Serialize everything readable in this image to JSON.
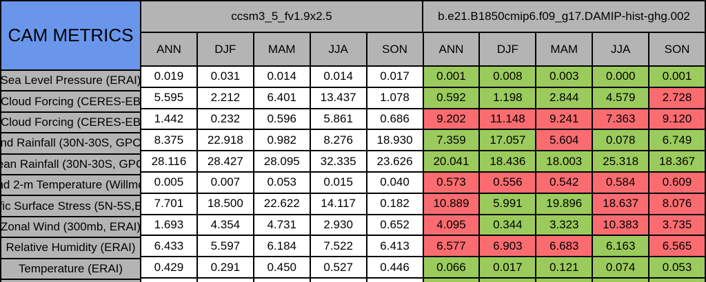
{
  "title": "CAM METRICS",
  "colors": {
    "blue": "#6996EB",
    "gray": "#B4B4B4",
    "white": "#FFFFFF",
    "green": "#9BCB5C",
    "red": "#FA6C70",
    "border": "#000000"
  },
  "table": {
    "models": [
      {
        "name": "ccsm3_5_fv1.9x2.5"
      },
      {
        "name": "b.e21.B1850cmip6.f09_g17.DAMIP-hist-ghg.002"
      }
    ],
    "season_headers": [
      "ANN",
      "DJF",
      "MAM",
      "JJA",
      "SON",
      "ANN",
      "DJF",
      "MAM",
      "JJA",
      "SON"
    ],
    "rows": [
      {
        "label": "Sea Level Pressure (ERAI)",
        "values": [
          "0.019",
          "0.031",
          "0.014",
          "0.014",
          "0.017",
          "0.001",
          "0.008",
          "0.003",
          "0.000",
          "0.001"
        ],
        "colors": [
          "white",
          "white",
          "white",
          "white",
          "white",
          "green",
          "green",
          "green",
          "green",
          "green"
        ]
      },
      {
        "label": "Cloud Forcing (CERES-EB",
        "values": [
          "5.595",
          "2.212",
          "6.401",
          "13.437",
          "1.078",
          "0.592",
          "1.198",
          "2.844",
          "4.579",
          "2.728"
        ],
        "colors": [
          "white",
          "white",
          "white",
          "white",
          "white",
          "green",
          "green",
          "green",
          "green",
          "red"
        ]
      },
      {
        "label": "Cloud Forcing (CERES-EB",
        "values": [
          "1.442",
          "0.232",
          "0.596",
          "5.861",
          "0.686",
          "9.202",
          "11.148",
          "9.241",
          "7.363",
          "9.120"
        ],
        "colors": [
          "white",
          "white",
          "white",
          "white",
          "white",
          "red",
          "red",
          "red",
          "red",
          "red"
        ]
      },
      {
        "label": "nd Rainfall (30N-30S, GPC",
        "values": [
          "8.375",
          "22.918",
          "0.982",
          "8.276",
          "18.930",
          "7.359",
          "17.057",
          "5.604",
          "0.078",
          "6.749"
        ],
        "colors": [
          "white",
          "white",
          "white",
          "white",
          "white",
          "green",
          "green",
          "red",
          "green",
          "green"
        ]
      },
      {
        "label": "ean Rainfall (30N-30S, GPC",
        "values": [
          "28.116",
          "28.427",
          "28.095",
          "32.335",
          "23.626",
          "20.041",
          "18.436",
          "18.003",
          "25.318",
          "18.367"
        ],
        "colors": [
          "white",
          "white",
          "white",
          "white",
          "white",
          "green",
          "green",
          "green",
          "green",
          "green"
        ]
      },
      {
        "label": "nd 2-m Temperature (Willmo",
        "values": [
          "0.005",
          "0.007",
          "0.053",
          "0.015",
          "0.040",
          "0.573",
          "0.556",
          "0.542",
          "0.584",
          "0.609"
        ],
        "colors": [
          "white",
          "white",
          "white",
          "white",
          "white",
          "red",
          "red",
          "red",
          "red",
          "red"
        ]
      },
      {
        "label": "fic Surface Stress (5N-5S,E",
        "values": [
          "7.701",
          "18.500",
          "22.622",
          "14.117",
          "0.182",
          "10.889",
          "5.991",
          "19.896",
          "18.637",
          "8.076"
        ],
        "colors": [
          "white",
          "white",
          "white",
          "white",
          "white",
          "red",
          "green",
          "green",
          "red",
          "red"
        ]
      },
      {
        "label": "Zonal Wind (300mb, ERAI)",
        "values": [
          "1.693",
          "4.354",
          "4.731",
          "2.930",
          "0.652",
          "4.095",
          "0.344",
          "3.323",
          "10.383",
          "3.735"
        ],
        "colors": [
          "white",
          "white",
          "white",
          "white",
          "white",
          "red",
          "green",
          "green",
          "red",
          "red"
        ]
      },
      {
        "label": "Relative Humidity (ERAI)",
        "values": [
          "6.433",
          "5.597",
          "6.184",
          "7.522",
          "6.413",
          "6.577",
          "6.903",
          "6.683",
          "6.163",
          "6.565"
        ],
        "colors": [
          "white",
          "white",
          "white",
          "white",
          "white",
          "red",
          "red",
          "red",
          "green",
          "red"
        ]
      },
      {
        "label": "Temperature (ERAI)",
        "values": [
          "0.429",
          "0.291",
          "0.450",
          "0.527",
          "0.446",
          "0.066",
          "0.017",
          "0.121",
          "0.074",
          "0.053"
        ],
        "colors": [
          "white",
          "white",
          "white",
          "white",
          "white",
          "green",
          "green",
          "green",
          "green",
          "green"
        ]
      }
    ],
    "partial_row_colors": [
      "white",
      "white",
      "white",
      "white",
      "white",
      "green",
      "green",
      "green",
      "green",
      "green"
    ]
  }
}
